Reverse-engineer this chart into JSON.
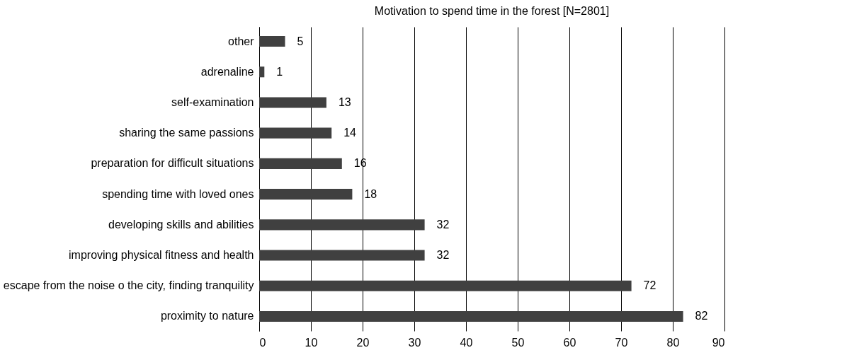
{
  "chart_data": {
    "type": "bar",
    "orientation": "horizontal",
    "title": "Motivation to spend time in the forest [N=2801]",
    "categories": [
      "other",
      "adrenaline",
      "self-examination",
      "sharing the same passions",
      "preparation for difficult situations",
      "spending time with loved ones",
      "developing skills and abilities",
      "improving physical fitness and health",
      "escape from the noise o the city, finding tranquility",
      "proximity to nature"
    ],
    "values": [
      5,
      1,
      13,
      14,
      16,
      18,
      32,
      32,
      72,
      82
    ],
    "color": "#404040",
    "xlim": [
      0,
      90
    ],
    "xticks": [
      0,
      10,
      20,
      30,
      40,
      50,
      60,
      70,
      80,
      90
    ],
    "grid": "x",
    "data_labels": true
  }
}
